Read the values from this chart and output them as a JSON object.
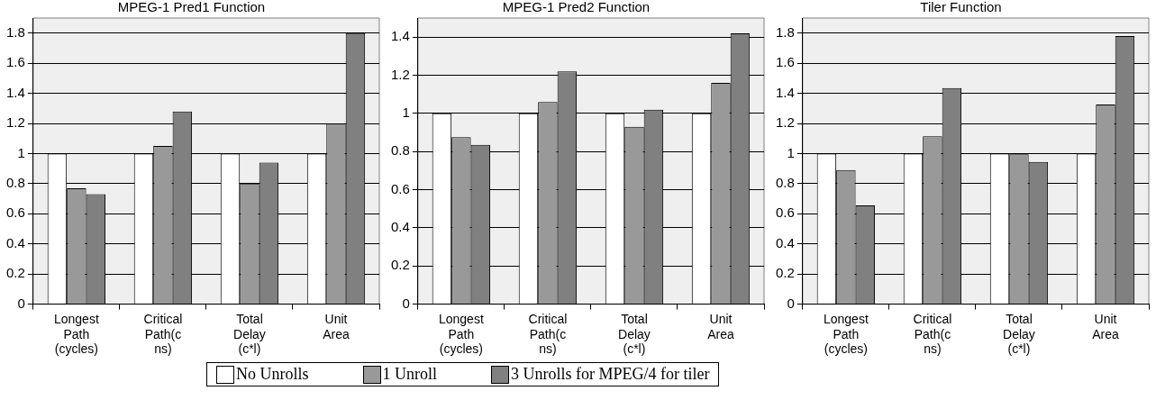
{
  "chart_data": [
    {
      "type": "bar",
      "title": "MPEG-1 Pred1 Function",
      "categories": [
        "Longest Path (cycles)",
        "Critical Path(c ns)",
        "Total Delay (c*l)",
        "Unit Area"
      ],
      "series": [
        {
          "name": "No Unrolls",
          "color": "#ffffff",
          "values": [
            1,
            1,
            1,
            1
          ]
        },
        {
          "name": "1 Unroll",
          "color": "#999999",
          "values": [
            0.77,
            1.05,
            0.8,
            1.2
          ]
        },
        {
          "name": "3 Unrolls for MPEG/4 for tiler",
          "color": "#808080",
          "values": [
            0.73,
            1.28,
            0.94,
            1.8
          ]
        }
      ],
      "ylim": [
        0,
        1.9
      ],
      "yticks": [
        0,
        0.2,
        0.4,
        0.6,
        0.8,
        1,
        1.2,
        1.4,
        1.6,
        1.8
      ],
      "grid": "y",
      "legend": "bottom"
    },
    {
      "type": "bar",
      "title": "MPEG-1 Pred2 Function",
      "categories": [
        "Longest Path (cycles)",
        "Critical Path(c ns)",
        "Total Delay (c*l)",
        "Unit Area"
      ],
      "series": [
        {
          "color": "#ffffff",
          "values": [
            1,
            1,
            1,
            1
          ]
        },
        {
          "color": "#999999",
          "values": [
            0.875,
            1.06,
            0.93,
            1.16
          ]
        },
        {
          "color": "#808080",
          "values": [
            0.835,
            1.22,
            1.02,
            1.42
          ]
        }
      ],
      "ylim": [
        0,
        1.5
      ],
      "yticks": [
        0,
        0.2,
        0.4,
        0.6,
        0.8,
        1,
        1.2,
        1.4
      ],
      "grid": "y"
    },
    {
      "type": "bar",
      "title": "Tiler Function",
      "categories": [
        "Longest Path (cycles)",
        "Critical Path(c ns)",
        "Total Delay (c*l)",
        "Unit Area"
      ],
      "series": [
        {
          "color": "#ffffff",
          "values": [
            1,
            1,
            1,
            1
          ]
        },
        {
          "color": "#999999",
          "values": [
            0.89,
            1.115,
            0.995,
            1.325
          ]
        },
        {
          "color": "#808080",
          "values": [
            0.655,
            1.435,
            0.945,
            1.78
          ]
        }
      ],
      "ylim": [
        0,
        1.9
      ],
      "yticks": [
        0,
        0.2,
        0.4,
        0.6,
        0.8,
        1,
        1.2,
        1.4,
        1.6,
        1.8
      ],
      "grid": "y"
    }
  ]
}
